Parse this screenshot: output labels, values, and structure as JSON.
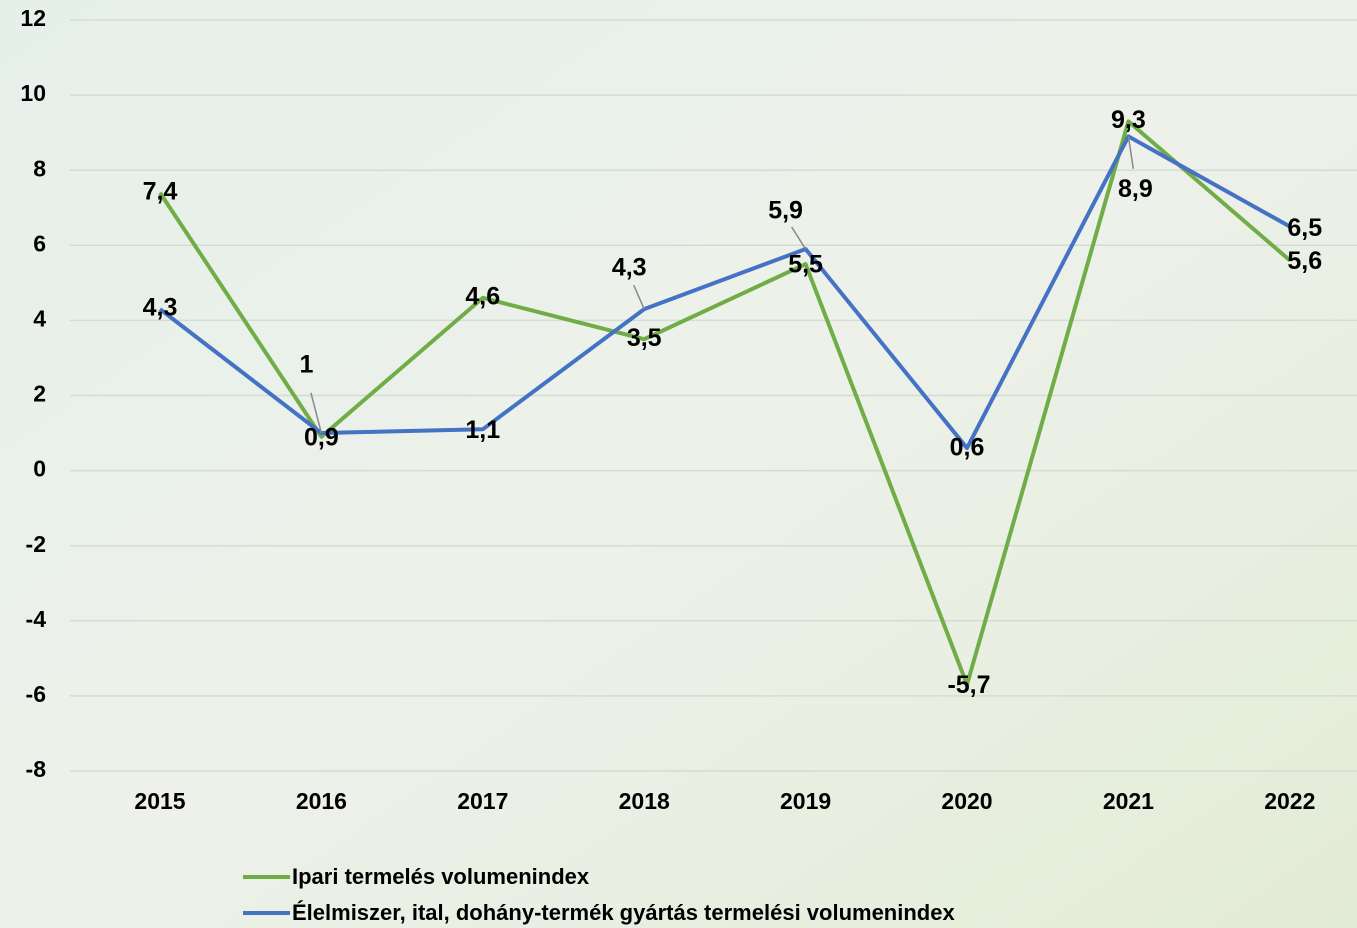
{
  "chart_data": {
    "type": "line",
    "categories": [
      "2015",
      "2016",
      "2017",
      "2018",
      "2019",
      "2020",
      "2021",
      "2022"
    ],
    "series": [
      {
        "name": "Ipari termelés volumenindex",
        "color": "#70ad47",
        "values": [
          7.4,
          0.9,
          4.6,
          3.5,
          5.5,
          -5.7,
          9.3,
          5.6
        ],
        "value_labels": [
          "7,4",
          "0,9",
          "4,6",
          "3,5",
          "5,5",
          "-5,7",
          "9,3",
          "5,6"
        ]
      },
      {
        "name": "Élelmiszer, ital, dohány-termék gyártás termelési volumenindex",
        "color": "#4472c4",
        "values": [
          4.3,
          1,
          1.1,
          4.3,
          5.9,
          0.6,
          8.9,
          6.5
        ],
        "value_labels": [
          "4,3",
          "1",
          "1,1",
          "4,3",
          "5,9",
          "0,6",
          "8,9",
          "6,5"
        ]
      }
    ],
    "ylim": [
      -8,
      12
    ],
    "yticks": [
      -8,
      -6,
      -4,
      -2,
      0,
      2,
      4,
      6,
      8,
      10,
      12
    ],
    "grid": true
  }
}
